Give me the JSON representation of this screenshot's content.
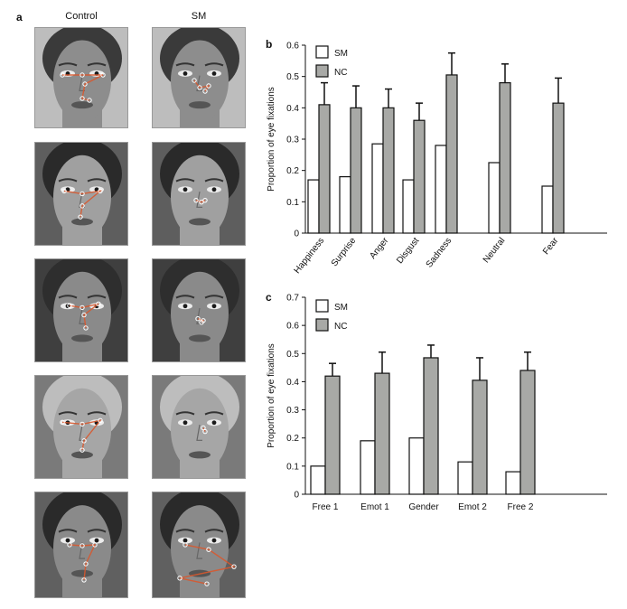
{
  "panel_a": {
    "letter": "a",
    "headers": [
      "Control",
      "SM"
    ]
  },
  "panel_b": {
    "letter": "b"
  },
  "panel_c": {
    "letter": "c"
  },
  "colors": {
    "sm_fill": "#ffffff",
    "nc_fill": "#a8a9a6",
    "fixation": "#d8582e"
  },
  "chart_data": [
    {
      "type": "bar",
      "ylabel": "Proportion of eye fixations",
      "ylim": [
        0,
        0.6
      ],
      "yticks": [
        "0",
        "0.1",
        "0.2",
        "0.3",
        "0.4",
        "0.5",
        "0.6"
      ],
      "legend_position": "top-left",
      "categories": [
        "Happiness",
        "Surprise",
        "Anger",
        "Disgust",
        "Sadness",
        "Neutral",
        "Fear"
      ],
      "series": [
        {
          "name": "SM",
          "values": [
            0.17,
            0.18,
            0.285,
            0.17,
            0.28,
            0.225,
            0.15
          ]
        },
        {
          "name": "NC",
          "values": [
            0.41,
            0.4,
            0.4,
            0.36,
            0.505,
            0.48,
            0.415
          ],
          "error": [
            0.07,
            0.07,
            0.06,
            0.055,
            0.07,
            0.06,
            0.08
          ]
        }
      ]
    },
    {
      "type": "bar",
      "ylabel": "Proportion of eye fixations",
      "ylim": [
        0,
        0.7
      ],
      "yticks": [
        "0",
        "0.1",
        "0.2",
        "0.3",
        "0.4",
        "0.5",
        "0.6",
        "0.7"
      ],
      "legend_position": "top-left",
      "categories": [
        "Free 1",
        "Emot 1",
        "Gender",
        "Emot 2",
        "Free 2"
      ],
      "series": [
        {
          "name": "SM",
          "values": [
            0.1,
            0.19,
            0.2,
            0.115,
            0.08
          ]
        },
        {
          "name": "NC",
          "values": [
            0.42,
            0.43,
            0.485,
            0.405,
            0.44
          ],
          "error": [
            0.045,
            0.075,
            0.045,
            0.08,
            0.065
          ]
        }
      ]
    }
  ]
}
